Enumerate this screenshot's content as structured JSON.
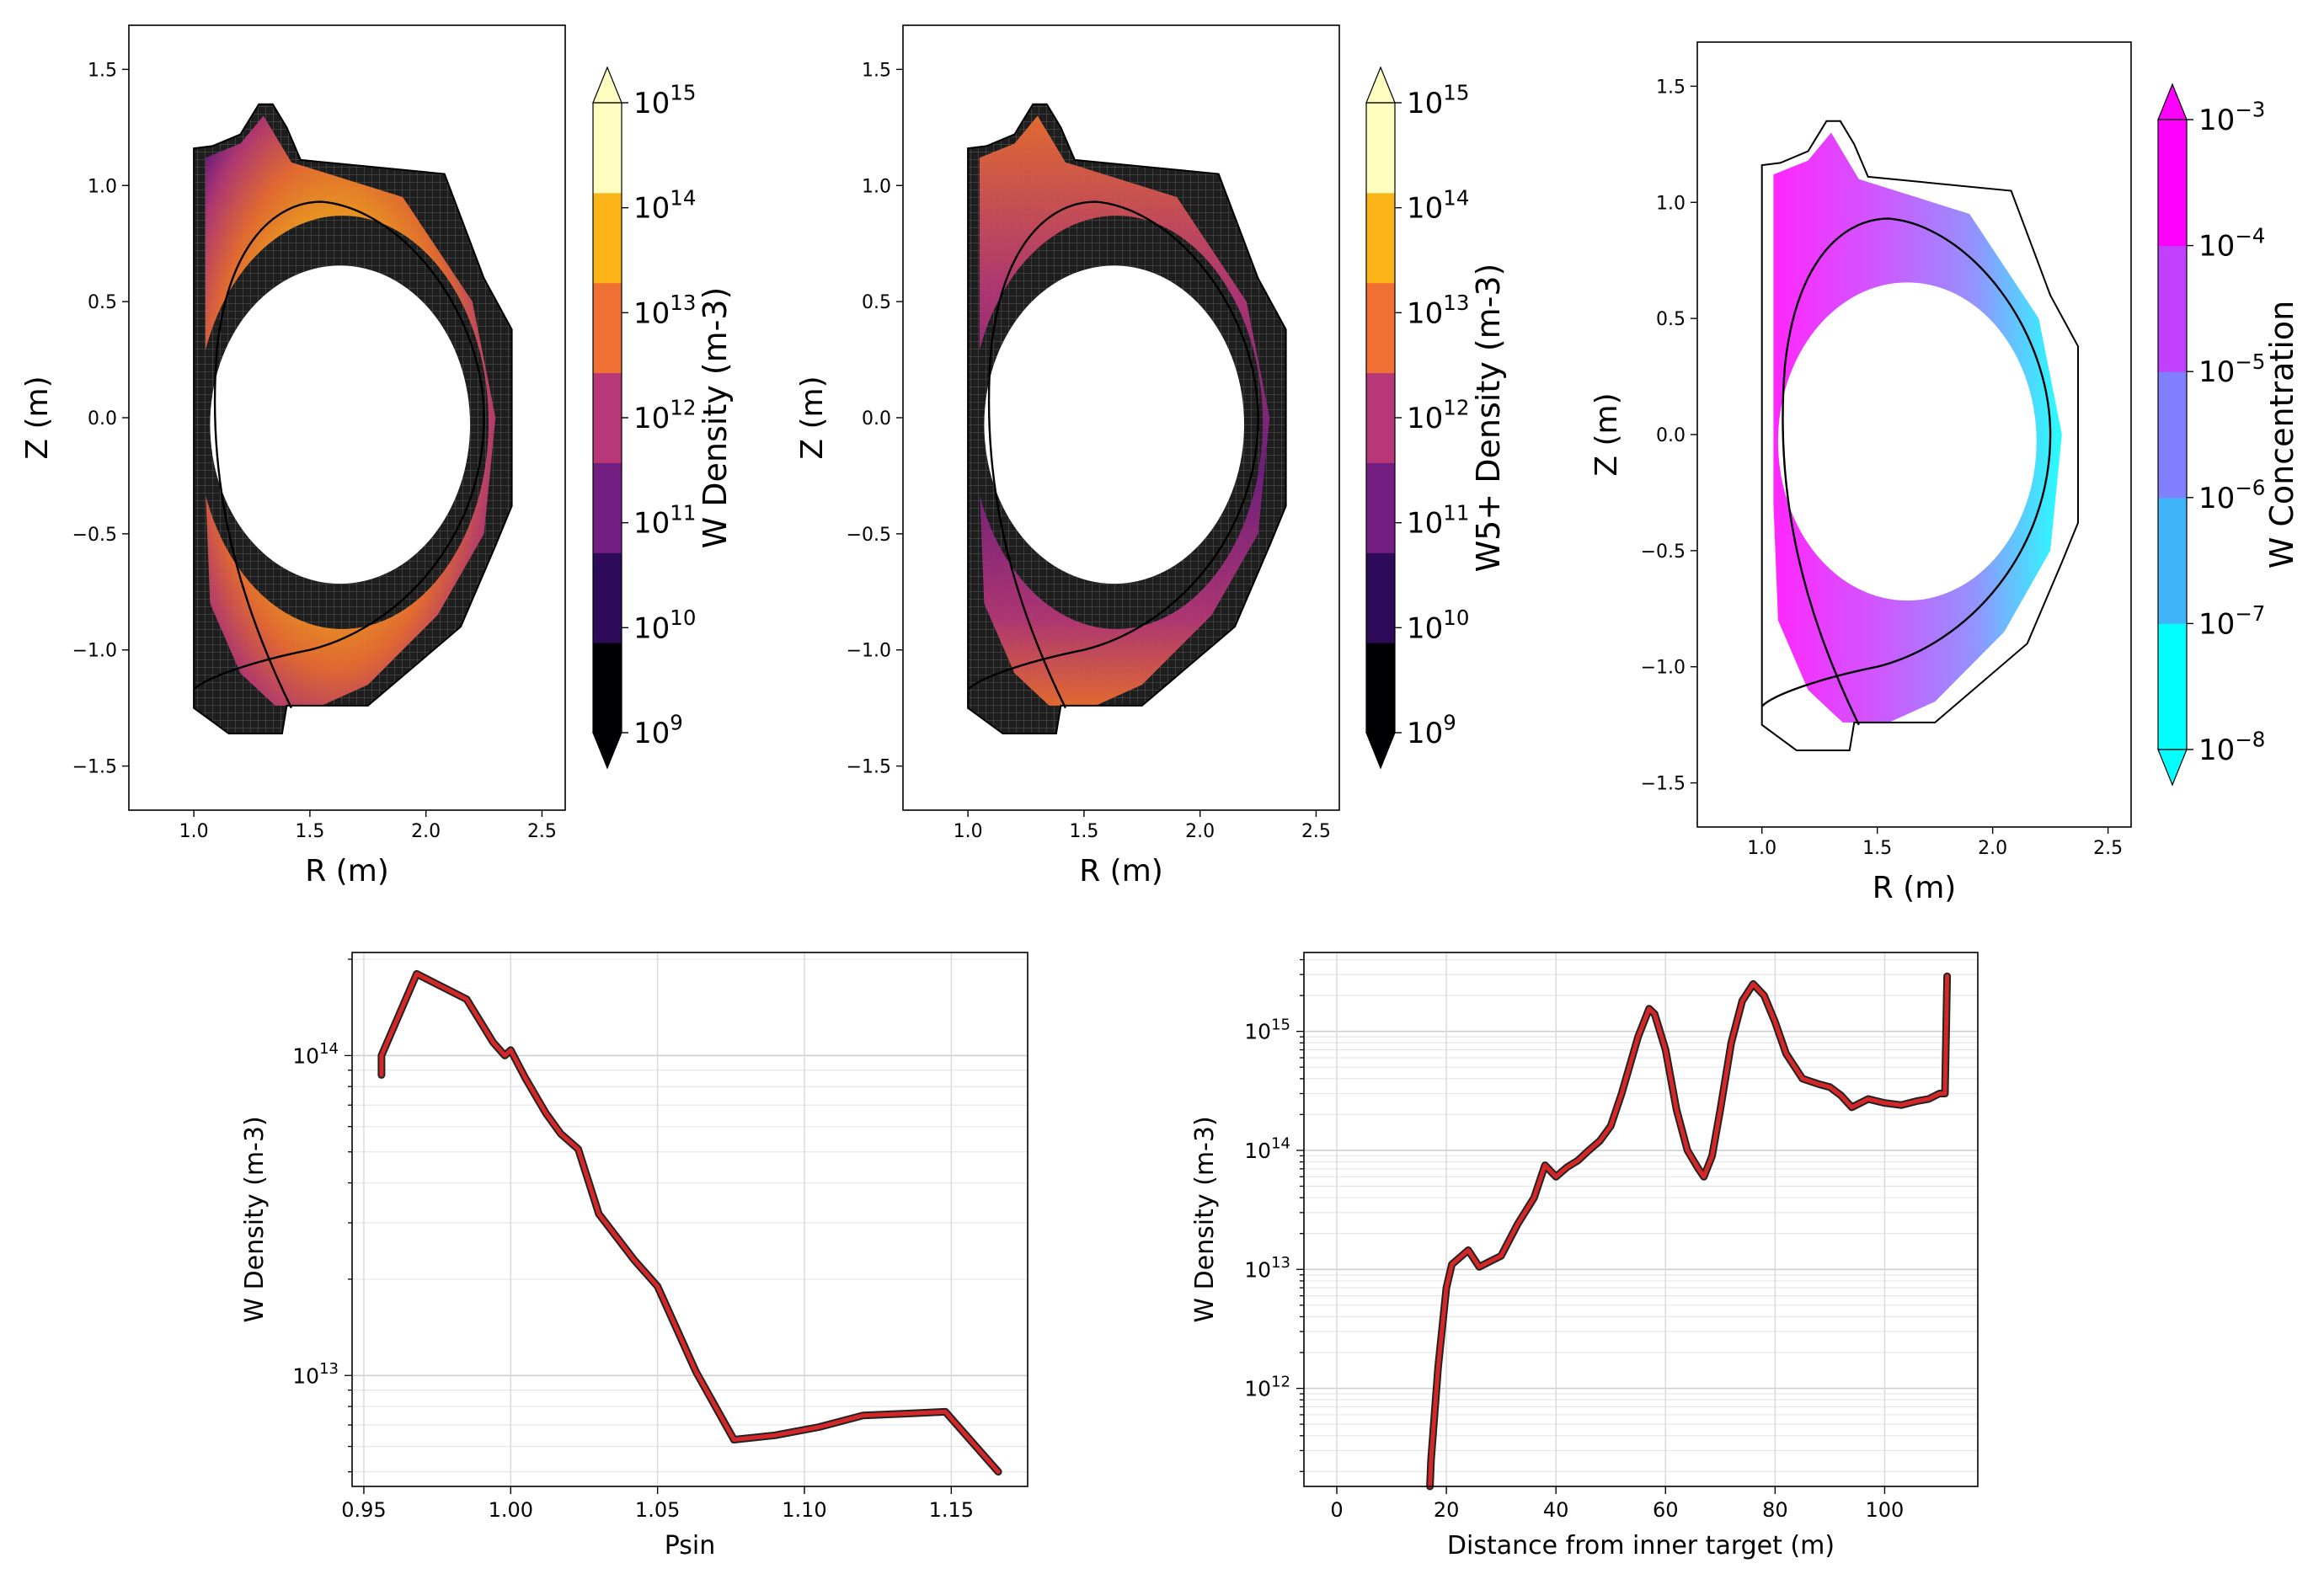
{
  "chart_data": [
    {
      "id": "w-density-map",
      "type": "heatmap",
      "xlabel": "R (m)",
      "ylabel": "Z (m)",
      "xticks": [
        "1.0",
        "1.5",
        "2.0",
        "2.5"
      ],
      "yticks": [
        "1.5",
        "1.0",
        "0.5",
        "0.0",
        "−0.5",
        "−1.0",
        "−1.5"
      ],
      "xlim": [
        0.72,
        2.6
      ],
      "ylim": [
        -1.69,
        1.69
      ],
      "colorbar": {
        "label": "W Density (m-3)",
        "scale": "log",
        "ticks": [
          {
            "base": "10",
            "exp": "9"
          },
          {
            "base": "10",
            "exp": "10"
          },
          {
            "base": "10",
            "exp": "11"
          },
          {
            "base": "10",
            "exp": "12"
          },
          {
            "base": "10",
            "exp": "13"
          },
          {
            "base": "10",
            "exp": "14"
          },
          {
            "base": "10",
            "exp": "15"
          }
        ],
        "colors": [
          "#000004",
          "#2d0b59",
          "#721f81",
          "#b73779",
          "#f06f32",
          "#fcb519",
          "#fcfdbf"
        ],
        "extend": "both"
      }
    },
    {
      "id": "w5-density-map",
      "type": "heatmap",
      "xlabel": "R (m)",
      "ylabel": "Z (m)",
      "xticks": [
        "1.0",
        "1.5",
        "2.0",
        "2.5"
      ],
      "yticks": [
        "1.5",
        "1.0",
        "0.5",
        "0.0",
        "−0.5",
        "−1.0",
        "−1.5"
      ],
      "xlim": [
        0.72,
        2.6
      ],
      "ylim": [
        -1.69,
        1.69
      ],
      "colorbar": {
        "label": "W5+ Density (m-3)",
        "scale": "log",
        "ticks": [
          {
            "base": "10",
            "exp": "9"
          },
          {
            "base": "10",
            "exp": "10"
          },
          {
            "base": "10",
            "exp": "11"
          },
          {
            "base": "10",
            "exp": "12"
          },
          {
            "base": "10",
            "exp": "13"
          },
          {
            "base": "10",
            "exp": "14"
          },
          {
            "base": "10",
            "exp": "15"
          }
        ],
        "colors": [
          "#000004",
          "#2d0b59",
          "#721f81",
          "#b73779",
          "#f06f32",
          "#fcb519",
          "#fcfdbf"
        ],
        "extend": "both"
      }
    },
    {
      "id": "w-concentration-map",
      "type": "heatmap",
      "xlabel": "R (m)",
      "ylabel": "Z (m)",
      "xticks": [
        "1.0",
        "1.5",
        "2.0",
        "2.5"
      ],
      "yticks": [
        "1.5",
        "1.0",
        "0.5",
        "0.0",
        "−0.5",
        "−1.0",
        "−1.5"
      ],
      "xlim": [
        0.72,
        2.6
      ],
      "ylim": [
        -1.69,
        1.69
      ],
      "colorbar": {
        "label": "W Concentration",
        "scale": "log",
        "ticks": [
          {
            "base": "10",
            "exp": "−8"
          },
          {
            "base": "10",
            "exp": "−7"
          },
          {
            "base": "10",
            "exp": "−6"
          },
          {
            "base": "10",
            "exp": "−5"
          },
          {
            "base": "10",
            "exp": "−4"
          },
          {
            "base": "10",
            "exp": "−3"
          }
        ],
        "colors": [
          "#00ffff",
          "#40b4f8",
          "#8080ff",
          "#c040ff",
          "#ff00ff"
        ],
        "extend": "both"
      }
    },
    {
      "id": "w-density-vs-psin",
      "type": "line",
      "xlabel": "Psin",
      "ylabel": "W Density (m-3)",
      "xlim": [
        0.946,
        1.176
      ],
      "ylim": [
        4500000000000.0,
        210000000000000.0
      ],
      "yscale": "log",
      "grid": true,
      "xticks": [
        {
          "v": 0.95,
          "label": "0.95"
        },
        {
          "v": 1.0,
          "label": "1.00"
        },
        {
          "v": 1.05,
          "label": "1.05"
        },
        {
          "v": 1.1,
          "label": "1.10"
        },
        {
          "v": 1.15,
          "label": "1.15"
        }
      ],
      "yticks": [
        {
          "v": 10000000000000.0,
          "base": "10",
          "exp": "13"
        },
        {
          "v": 100000000000000.0,
          "base": "10",
          "exp": "14"
        }
      ],
      "line_color": "#d62728",
      "edge_color": "#222222",
      "x": [
        0.956,
        0.956,
        0.968,
        0.985,
        0.994,
        0.998,
        1.0,
        1.005,
        1.012,
        1.017,
        1.023,
        1.03,
        1.042,
        1.05,
        1.063,
        1.076,
        1.09,
        1.105,
        1.12,
        1.135,
        1.148,
        1.166
      ],
      "y": [
        87000000000000.0,
        100000000000000.0,
        180000000000000.0,
        150000000000000.0,
        110000000000000.0,
        100000000000000.0,
        104000000000000.0,
        85000000000000.0,
        66000000000000.0,
        57000000000000.0,
        51000000000000.0,
        32000000000000.0,
        23000000000000.0,
        19000000000000.0,
        10300000000000.0,
        6300000000000.0,
        6500000000000.0,
        6900000000000.0,
        7500000000000.0,
        7600000000000.0,
        7700000000000.0,
        5000000000000.0
      ]
    },
    {
      "id": "w-density-vs-distance",
      "type": "line",
      "xlabel": "Distance from inner target (m)",
      "ylabel": "W Density (m-3)",
      "xlim": [
        -6,
        117
      ],
      "ylim": [
        150000000000.0,
        4600000000000000.0
      ],
      "yscale": "log",
      "grid": true,
      "xticks": [
        {
          "v": 0,
          "label": "0"
        },
        {
          "v": 20,
          "label": "20"
        },
        {
          "v": 40,
          "label": "40"
        },
        {
          "v": 60,
          "label": "60"
        },
        {
          "v": 80,
          "label": "80"
        },
        {
          "v": 100,
          "label": "100"
        }
      ],
      "yticks": [
        {
          "v": 1000000000000.0,
          "base": "10",
          "exp": "12"
        },
        {
          "v": 10000000000000.0,
          "base": "10",
          "exp": "13"
        },
        {
          "v": 100000000000000.0,
          "base": "10",
          "exp": "14"
        },
        {
          "v": 1000000000000000.0,
          "base": "10",
          "exp": "15"
        }
      ],
      "line_color": "#d62728",
      "edge_color": "#222222",
      "x": [
        17.0,
        17.2,
        18.5,
        20.0,
        21.0,
        24.0,
        26.0,
        30.0,
        33.0,
        36.0,
        38.0,
        40.0,
        42.0,
        44.0,
        46.0,
        48.0,
        50.0,
        52.0,
        55.0,
        57.0,
        58.0,
        60.0,
        62.0,
        64.0,
        66.0,
        67.0,
        68.5,
        70.0,
        72.0,
        74.0,
        76.0,
        78.0,
        80.0,
        82.0,
        85.0,
        88.0,
        90.0,
        92.0,
        94.0,
        97.0,
        100.0,
        103.0,
        106.0,
        108.0,
        110.0,
        111.0,
        111.4
      ],
      "y": [
        150000000000.0,
        250000000000.0,
        1500000000000.0,
        7000000000000.0,
        11000000000000.0,
        14500000000000.0,
        10500000000000.0,
        13000000000000.0,
        24000000000000.0,
        40000000000000.0,
        75000000000000.0,
        60000000000000.0,
        72000000000000.0,
        82000000000000.0,
        100000000000000.0,
        120000000000000.0,
        160000000000000.0,
        300000000000000.0,
        900000000000000.0,
        1550000000000000.0,
        1400000000000000.0,
        700000000000000.0,
        220000000000000.0,
        100000000000000.0,
        70000000000000.0,
        60000000000000.0,
        90000000000000.0,
        220000000000000.0,
        800000000000000.0,
        1800000000000000.0,
        2500000000000000.0,
        2000000000000000.0,
        1200000000000000.0,
        650000000000000.0,
        400000000000000.0,
        360000000000000.0,
        340000000000000.0,
        290000000000000.0,
        230000000000000.0,
        270000000000000.0,
        250000000000000.0,
        240000000000000.0,
        260000000000000.0,
        270000000000000.0,
        300000000000000.0,
        300000000000000.0,
        2900000000000000.0
      ]
    }
  ]
}
